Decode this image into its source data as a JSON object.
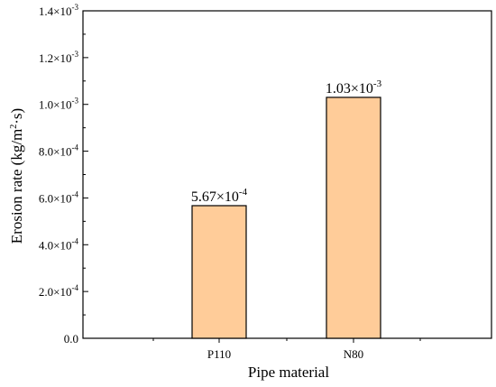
{
  "chart_data": {
    "type": "bar",
    "categories": [
      "P110",
      "N80"
    ],
    "values": [
      0.000567,
      0.00103
    ],
    "data_labels": [
      {
        "mantissa": "5.67×10",
        "exponent": "-4"
      },
      {
        "mantissa": "1.03×10",
        "exponent": "-3"
      }
    ],
    "xlabel": "Pipe material",
    "ylabel": {
      "main": "Erosion rate (kg/m",
      "sup": "2",
      "tail": "·s)"
    },
    "ylim": [
      0,
      0.0014
    ],
    "yticks": [
      {
        "value": 0,
        "mantissa": "0.0",
        "exponent": ""
      },
      {
        "value": 0.0002,
        "mantissa": "2.0×10",
        "exponent": "-4"
      },
      {
        "value": 0.0004,
        "mantissa": "4.0×10",
        "exponent": "-4"
      },
      {
        "value": 0.0006,
        "mantissa": "6.0×10",
        "exponent": "-4"
      },
      {
        "value": 0.0008,
        "mantissa": "8.0×10",
        "exponent": "-4"
      },
      {
        "value": 0.001,
        "mantissa": "1.0×10",
        "exponent": "-3"
      },
      {
        "value": 0.0012,
        "mantissa": "1.2×10",
        "exponent": "-3"
      },
      {
        "value": 0.0014,
        "mantissa": "1.4×10",
        "exponent": "-3"
      }
    ],
    "grid": false,
    "legend": "none",
    "colors": {
      "bar_fill": "#FFCC99",
      "bar_stroke": "#000000",
      "axis": "#000000"
    }
  }
}
